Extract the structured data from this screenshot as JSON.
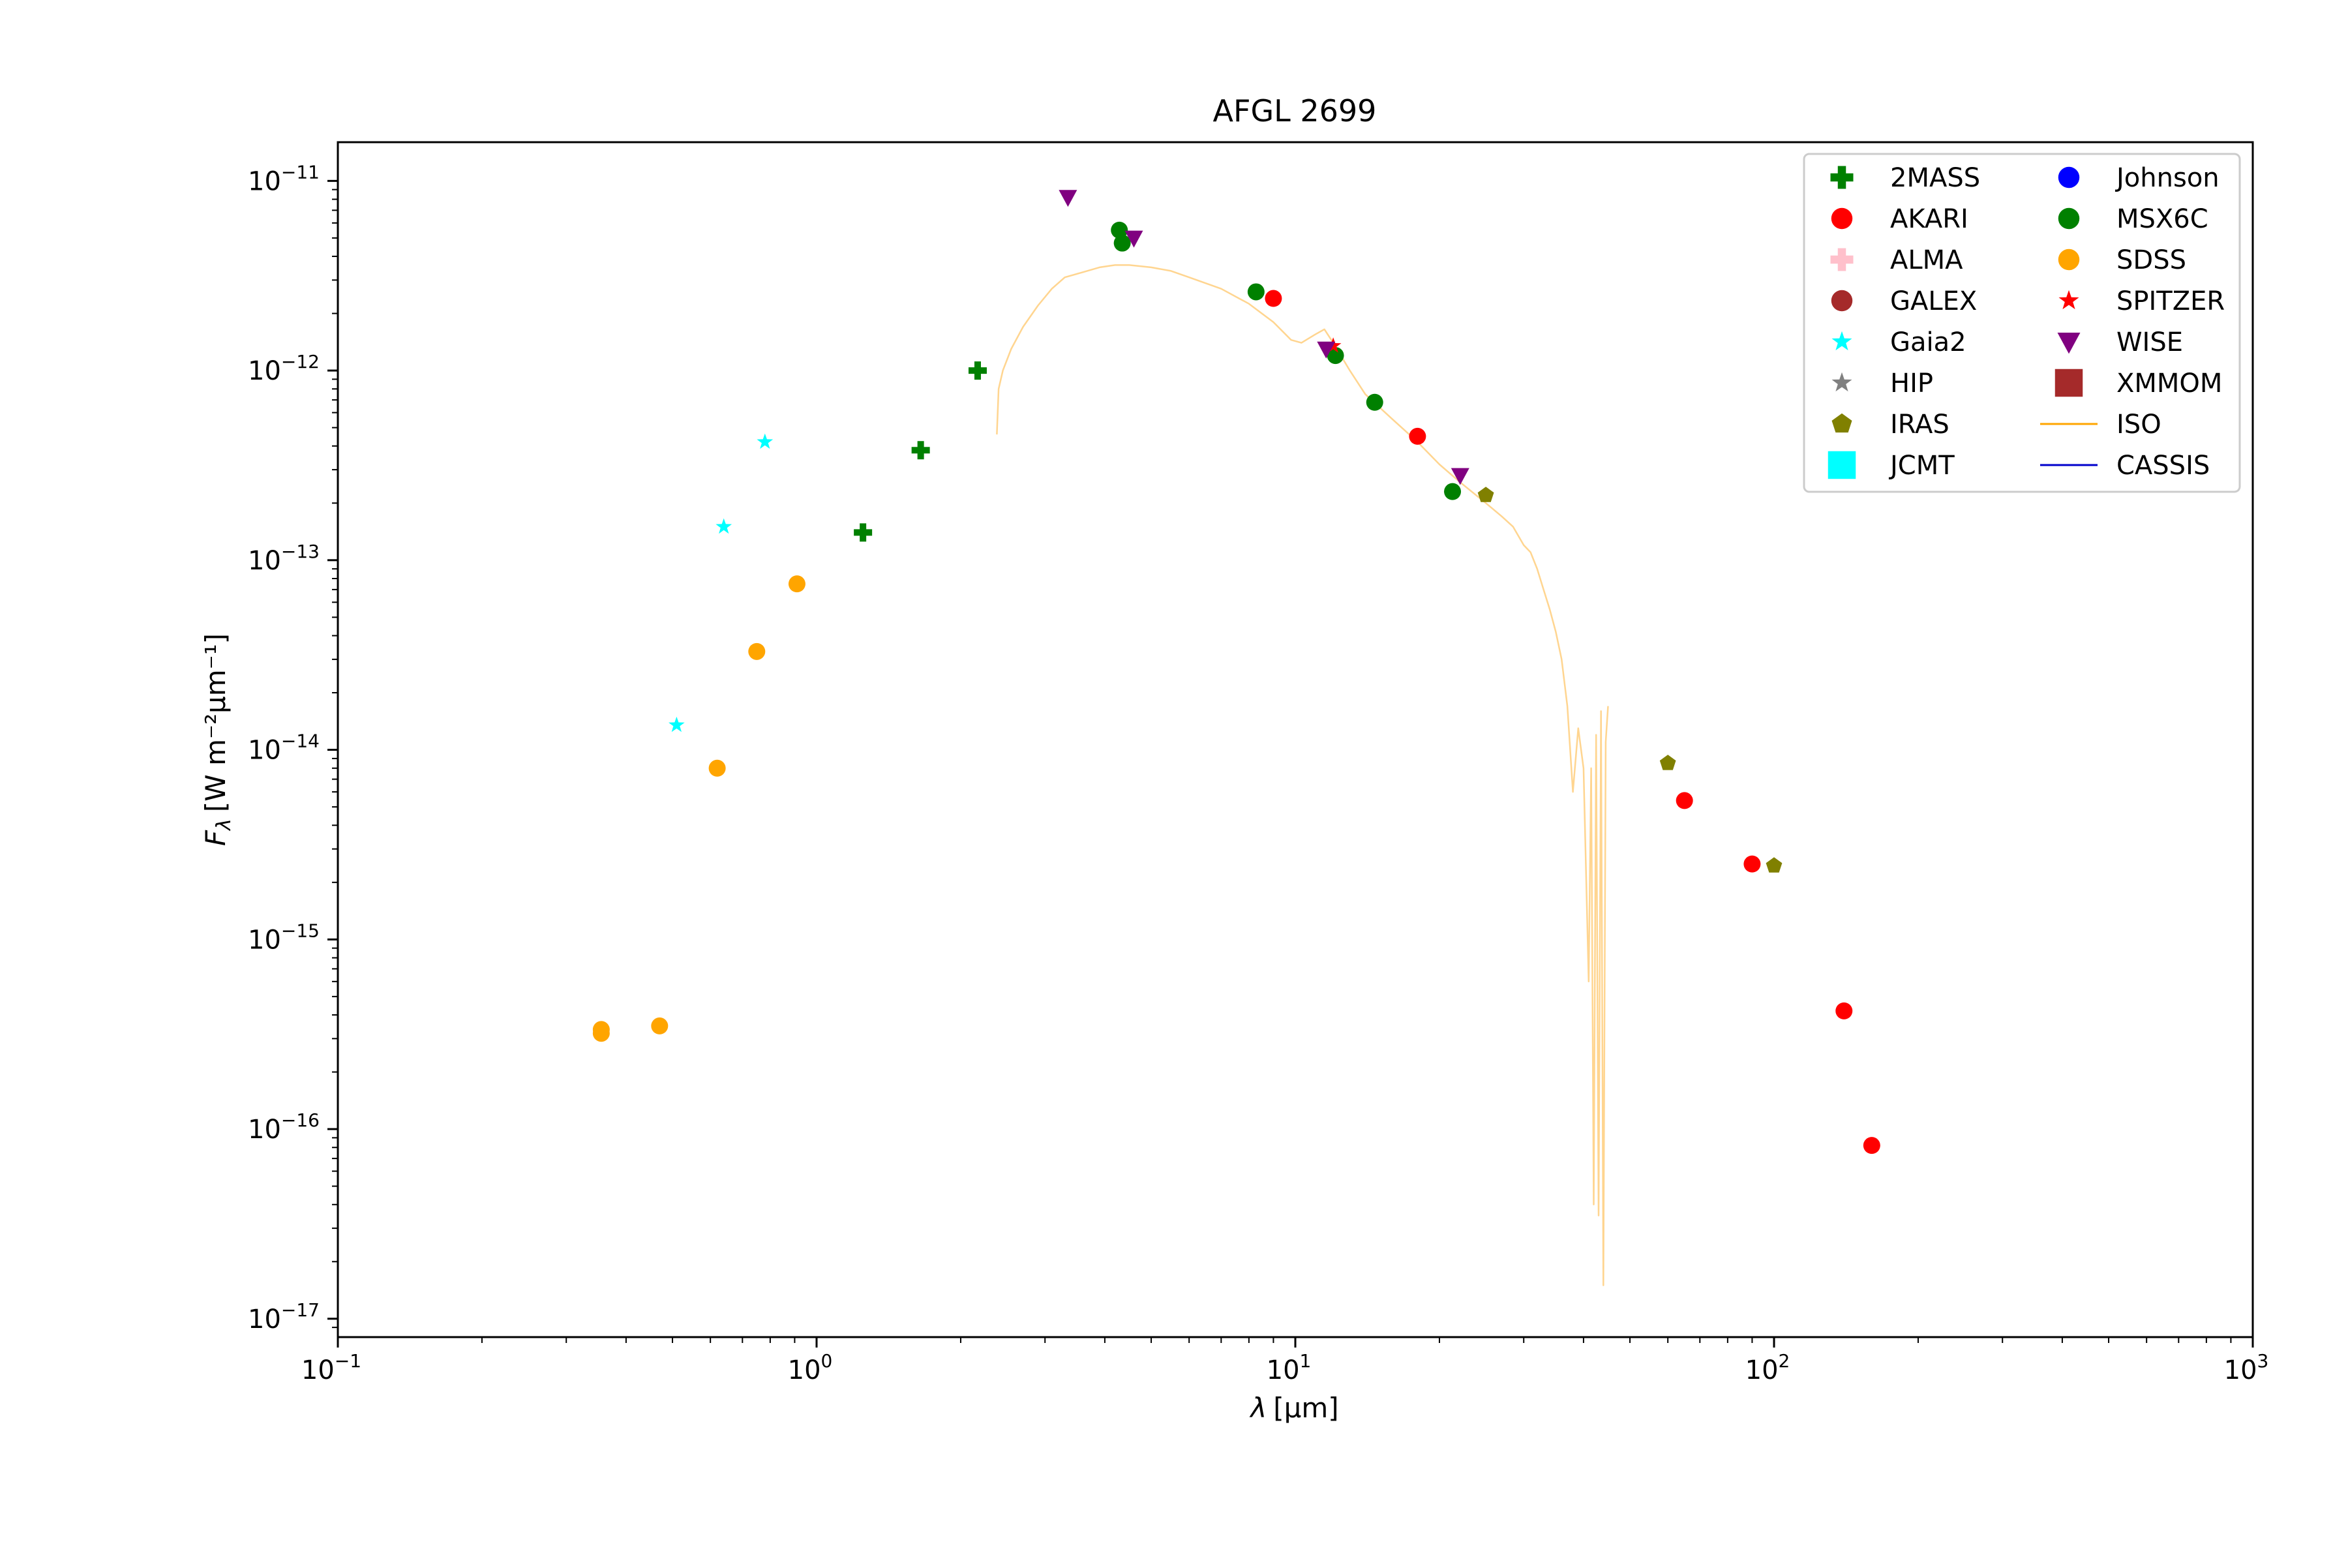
{
  "chart_data": {
    "type": "scatter",
    "title": "AFGL 2699",
    "xlabel": {
      "base": "λ",
      "unit": "[μm]"
    },
    "ylabel": {
      "base": "F",
      "sub": "λ",
      "unit": "[W m⁻²μm⁻¹]"
    },
    "xscale": "log",
    "yscale": "log",
    "xlim": [
      0.1,
      1000
    ],
    "ylim": [
      8e-18,
      1.6e-11
    ],
    "xticks": [
      {
        "value": 0.1,
        "base": "10",
        "exp": "−1"
      },
      {
        "value": 1,
        "base": "10",
        "exp": "0"
      },
      {
        "value": 10,
        "base": "10",
        "exp": "1"
      },
      {
        "value": 100,
        "base": "10",
        "exp": "2"
      },
      {
        "value": 1000,
        "base": "10",
        "exp": "3"
      }
    ],
    "yticks": [
      {
        "value": 1e-17,
        "base": "10",
        "exp": "−17"
      },
      {
        "value": 1e-16,
        "base": "10",
        "exp": "−16"
      },
      {
        "value": 1e-15,
        "base": "10",
        "exp": "−15"
      },
      {
        "value": 1e-14,
        "base": "10",
        "exp": "−14"
      },
      {
        "value": 1e-13,
        "base": "10",
        "exp": "−13"
      },
      {
        "value": 1e-12,
        "base": "10",
        "exp": "−12"
      },
      {
        "value": 1e-11,
        "base": "10",
        "exp": "−11"
      }
    ],
    "grid": false,
    "legend_position": "top-right",
    "legend_columns": 2,
    "series": [
      {
        "name": "2MASS",
        "marker": "plus",
        "color": "#008000",
        "x": [
          1.25,
          1.65,
          2.17
        ],
        "y": [
          1.4e-13,
          3.8e-13,
          1e-12
        ]
      },
      {
        "name": "AKARI",
        "marker": "circle",
        "color": "#ff0000",
        "x": [
          9,
          18,
          65,
          90,
          140,
          160
        ],
        "y": [
          2.4e-12,
          4.5e-13,
          5.4e-15,
          2.5e-15,
          4.2e-16,
          8.2e-17
        ]
      },
      {
        "name": "ALMA",
        "marker": "plus",
        "color": "#ffc0cb",
        "x": [],
        "y": []
      },
      {
        "name": "GALEX",
        "marker": "circle",
        "color": "#a52a2a",
        "x": [],
        "y": []
      },
      {
        "name": "Gaia2",
        "marker": "star",
        "color": "#00ffff",
        "x": [
          0.51,
          0.64,
          0.78
        ],
        "y": [
          1.35e-14,
          1.5e-13,
          4.2e-13
        ]
      },
      {
        "name": "HIP",
        "marker": "star",
        "color": "#808080",
        "x": [],
        "y": []
      },
      {
        "name": "IRAS",
        "marker": "pentagon",
        "color": "#808000",
        "x": [
          25,
          60,
          100
        ],
        "y": [
          2.2e-13,
          8.5e-15,
          2.45e-15
        ]
      },
      {
        "name": "JCMT",
        "marker": "square",
        "color": "#00ffff",
        "x": [],
        "y": []
      },
      {
        "name": "Johnson",
        "marker": "circle",
        "color": "#0000ff",
        "x": [],
        "y": []
      },
      {
        "name": "MSX6C",
        "marker": "circle",
        "color": "#008000",
        "x": [
          4.29,
          4.35,
          8.28,
          12.13,
          14.65,
          21.3
        ],
        "y": [
          5.5e-12,
          4.7e-12,
          2.6e-12,
          1.2e-12,
          6.8e-13,
          2.3e-13
        ]
      },
      {
        "name": "SDSS",
        "marker": "circle",
        "color": "#ffa500",
        "x": [
          0.355,
          0.355,
          0.47,
          0.62,
          0.75,
          0.91
        ],
        "y": [
          3.2e-16,
          3.35e-16,
          3.5e-16,
          8e-15,
          3.3e-14,
          7.5e-14
        ]
      },
      {
        "name": "SPITZER",
        "marker": "star",
        "color": "#ff0000",
        "x": [
          12.0
        ],
        "y": [
          1.35e-12
        ]
      },
      {
        "name": "WISE",
        "marker": "triangle-down",
        "color": "#800080",
        "x": [
          3.35,
          4.6,
          11.6,
          22.1
        ],
        "y": [
          8.2e-12,
          5e-12,
          1.3e-12,
          2.8e-13
        ]
      },
      {
        "name": "XMMOM",
        "marker": "square",
        "color": "#a52a2a",
        "x": [],
        "y": []
      },
      {
        "name": "ISO",
        "marker": "line",
        "color": "#ffa500",
        "line_color": "#ffd590",
        "x": [
          2.38,
          2.4,
          2.45,
          2.55,
          2.7,
          2.9,
          3.1,
          3.3,
          3.6,
          3.9,
          4.2,
          4.5,
          5.0,
          5.5,
          6.0,
          7.0,
          8.0,
          9.0,
          9.8,
          10.3,
          11.0,
          11.5,
          12.0,
          13.0,
          14.0,
          16.0,
          18.0,
          20.0,
          22.0,
          25.0,
          27.0,
          28.5,
          30.0,
          31.0,
          32.0,
          33.0,
          34.0,
          35.0,
          36.0,
          37.0,
          38.0,
          39.0,
          40.0,
          41.0,
          41.5,
          42.0,
          42.5,
          43.0,
          43.5,
          44.0,
          44.5,
          45.0
        ],
        "y": [
          4.6e-13,
          8e-13,
          1e-12,
          1.3e-12,
          1.7e-12,
          2.2e-12,
          2.7e-12,
          3.1e-12,
          3.3e-12,
          3.5e-12,
          3.6e-12,
          3.6e-12,
          3.5e-12,
          3.35e-12,
          3.1e-12,
          2.7e-12,
          2.25e-12,
          1.8e-12,
          1.45e-12,
          1.4e-12,
          1.55e-12,
          1.65e-12,
          1.4e-12,
          1e-12,
          7.5e-13,
          5.5e-13,
          4.2e-13,
          3.2e-13,
          2.6e-13,
          2e-13,
          1.7e-13,
          1.5e-13,
          1.2e-13,
          1.1e-13,
          9e-14,
          7e-14,
          5.5e-14,
          4.2e-14,
          3e-14,
          1.7e-14,
          6e-15,
          1.3e-14,
          8e-15,
          6e-16,
          8e-15,
          4e-17,
          1.2e-14,
          3.5e-17,
          1.6e-14,
          1.5e-17,
          1.1e-14,
          1.7e-14
        ]
      },
      {
        "name": "CASSIS",
        "marker": "line",
        "color": "#0000cc",
        "x": [],
        "y": []
      }
    ]
  }
}
